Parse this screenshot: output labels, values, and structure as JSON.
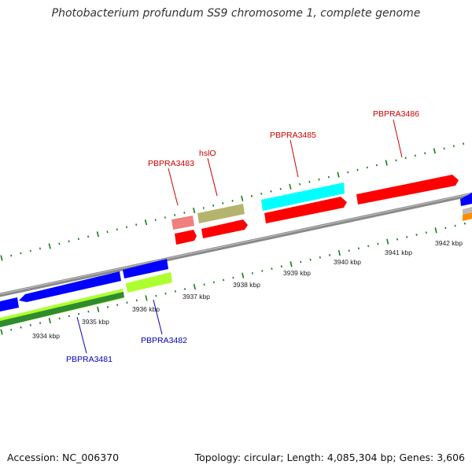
{
  "title": "Photobacterium profundum SS9 chromosome 1, complete genome",
  "footer": {
    "accession": "Accession: NC_006370",
    "summary": "Topology: circular; Length: 4,085,304 bp; Genes: 3,606"
  },
  "colors": {
    "backbone": "#8a8a8a",
    "tick": "#1a7a1a",
    "label_forward": "#cc0000",
    "label_reverse": "#0000bb",
    "red": "#ff0000",
    "pink": "#f08080",
    "khaki": "#b4b46e",
    "cyan": "#00ffff",
    "blue": "#0000ff",
    "lime": "#adff2f",
    "green": "#2e8b2e",
    "orange": "#ff8c00"
  },
  "kbp_labels": [
    "3934 kbp",
    "3935 kbp",
    "3936 kbp",
    "3937 kbp",
    "3938 kbp",
    "3939 kbp",
    "3940 kbp",
    "3941 kbp",
    "3942 kbp"
  ],
  "gene_labels": {
    "forward": [
      "PBPRA3483",
      "hslO",
      "PBPRA3485",
      "PBPRA3486"
    ],
    "reverse": [
      "PBPRA3481",
      "PBPRA3482"
    ]
  }
}
